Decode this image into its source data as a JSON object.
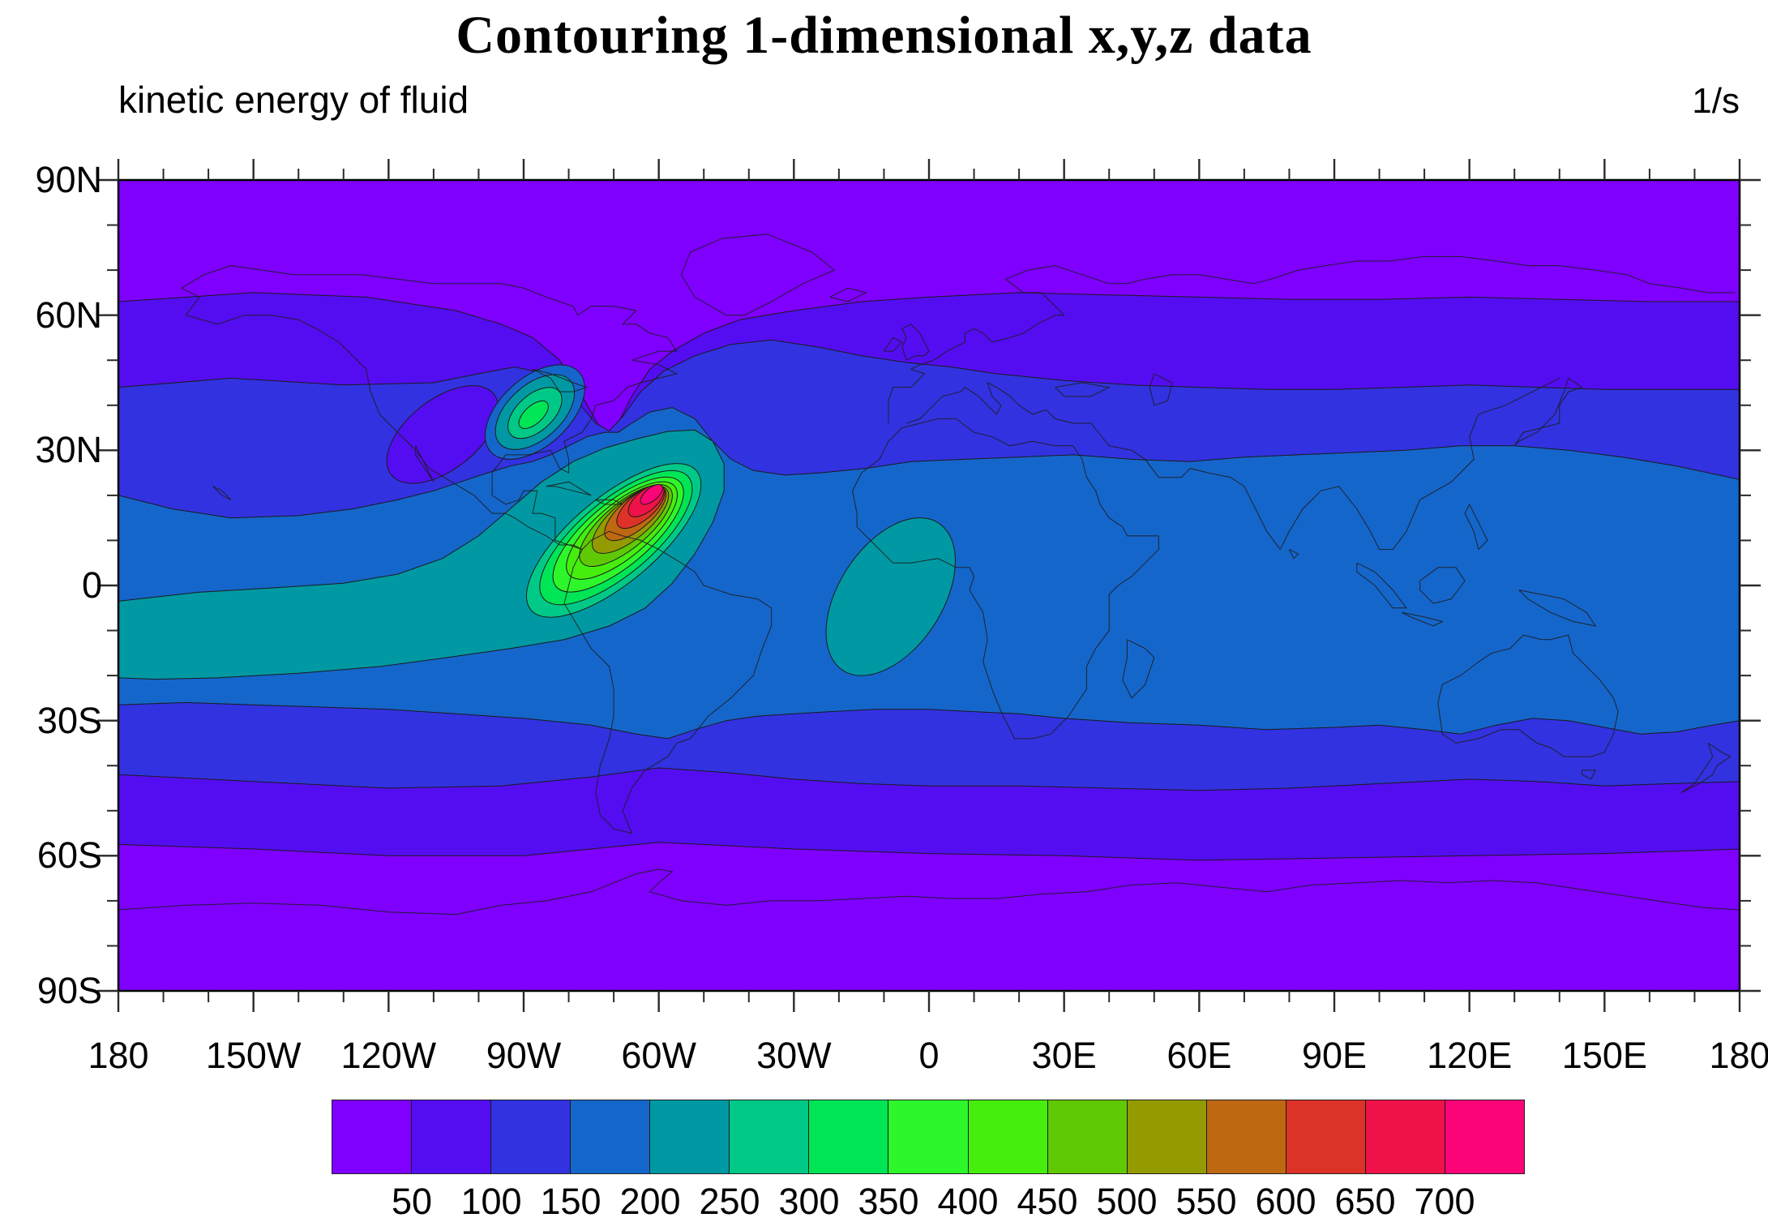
{
  "title": "Contouring 1-dimensional x,y,z data",
  "subtitle": "kinetic energy of fluid",
  "units": "1/s",
  "y_axis": {
    "labels": [
      "90N",
      "60N",
      "30N",
      "0",
      "30S",
      "60S",
      "90S"
    ]
  },
  "x_axis": {
    "labels": [
      "180",
      "150W",
      "120W",
      "90W",
      "60W",
      "30W",
      "0",
      "30E",
      "60E",
      "90E",
      "120E",
      "150E",
      "180"
    ]
  },
  "colorbar": {
    "tick_labels": [
      "50",
      "100",
      "150",
      "200",
      "250",
      "300",
      "350",
      "400",
      "450",
      "500",
      "550",
      "600",
      "650",
      "700"
    ],
    "colors": [
      "#7F00FF",
      "#540DF0",
      "#3232E0",
      "#1566CB",
      "#0099A3",
      "#00C987",
      "#00E556",
      "#2DF72A",
      "#46EE0E",
      "#60C905",
      "#949B02",
      "#BF6812",
      "#DC3227",
      "#EE1248",
      "#FB0478"
    ]
  },
  "chart_data": {
    "type": "heatmap",
    "subtype": "filled-contour-world-map",
    "title": "Contouring 1-dimensional x,y,z data",
    "field": "kinetic energy of fluid",
    "units": "1/s",
    "projection": "equirectangular with coastline outlines",
    "x_range": [
      -180,
      180
    ],
    "y_range": [
      -90,
      90
    ],
    "x_tick_step_deg": 10,
    "x_label_step_deg": 30,
    "y_tick_step_deg": 10,
    "y_label_step_deg": 30,
    "contour_levels": [
      50,
      100,
      150,
      200,
      250,
      300,
      350,
      400,
      450,
      500,
      550,
      600,
      650,
      700
    ],
    "legend_position": "horizontal labelbar below plot",
    "features": [
      {
        "name": "primary maximum",
        "lon": -61,
        "lat": 21,
        "peak_value": "> 700",
        "shape": "NE-SW tilted elongated cell with complete ring of contours from 200 to 700"
      },
      {
        "name": "southwest tail",
        "value": "200-250",
        "description": "teal band stretches from the primary maximum southwest across the Pacific to the west map edge near 3S-21S"
      },
      {
        "name": "secondary maximum",
        "lon": -87,
        "lat": 38,
        "peak_value": "300-350",
        "shape": "small tilted oval near the Great Lakes"
      },
      {
        "name": "tertiary maximum",
        "lon": -9,
        "lat": -2,
        "peak_value": "200-250",
        "shape": "NNE-SSW tilted oval over the eastern Atlantic and west Africa"
      },
      {
        "name": "local minimum",
        "lon": -108,
        "lat": 33,
        "value": "50-100",
        "shape": "tilted violet oval over Mexico and Baja California"
      },
      {
        "name": "polar minima",
        "value": "< 50",
        "description": "purple caps poleward of about 63N and 58S, purple notch dipping to 33N near 71W"
      },
      {
        "name": "zonal background",
        "description": "quasi-zonal bands: 150-200 through the tropics, decreasing to < 50 at both poles"
      }
    ]
  }
}
